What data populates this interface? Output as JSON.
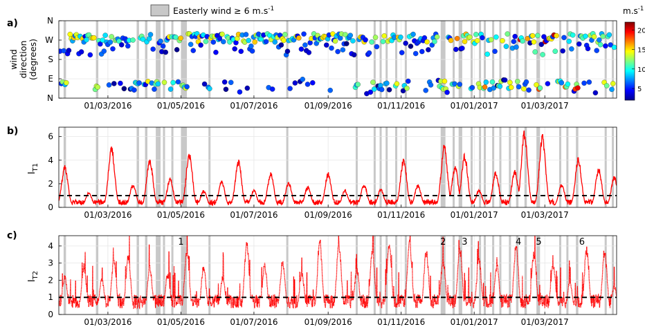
{
  "legend": {
    "label": "Easterly wind ≥ 6 m.s",
    "sup": "-1"
  },
  "colorbar": {
    "unit": "m.s",
    "unit_sup": "-1",
    "ticks": [
      "20",
      "15",
      "10",
      "5"
    ]
  },
  "colors": {
    "shade": "#c8c8c8",
    "series": "#ff0000",
    "threshold": "#000000"
  },
  "chart_data": [
    {
      "id": "a",
      "panel_label": "a)",
      "type": "scatter",
      "ylabel_line1": "wind",
      "ylabel_line2": "direction",
      "ylabel_line3": "(degrees)",
      "yticks": [
        "N",
        "W",
        "S",
        "E",
        "N"
      ],
      "ylim": [
        0,
        360
      ],
      "xticks": [
        "01/03/2016",
        "01/05/2016",
        "01/07/2016",
        "01/09/2016",
        "01/11/2016",
        "01/01/2017",
        "01/03/2017"
      ],
      "x_range": [
        "2016-01-20",
        "2017-04-30"
      ],
      "color_range_ms": [
        2,
        22
      ]
    },
    {
      "id": "b",
      "panel_label": "b)",
      "type": "line",
      "ylabel": "I",
      "ylabel_sub": "T1",
      "yticks": [
        "0",
        "2",
        "4",
        "6"
      ],
      "ylim": [
        0,
        6.8
      ],
      "threshold": 1,
      "xticks": [
        "01/03/2016",
        "01/05/2016",
        "01/07/2016",
        "01/09/2016",
        "01/11/2016",
        "01/01/2017",
        "01/03/2017"
      ],
      "peaks": [
        [
          "2016-01-25",
          3.6
        ],
        [
          "2016-02-14",
          1.3
        ],
        [
          "2016-03-04",
          5.3
        ],
        [
          "2016-03-22",
          2.0
        ],
        [
          "2016-04-05",
          4.3
        ],
        [
          "2016-04-22",
          2.5
        ],
        [
          "2016-05-08",
          4.8
        ],
        [
          "2016-05-20",
          1.5
        ],
        [
          "2016-06-04",
          2.3
        ],
        [
          "2016-06-18",
          4.1
        ],
        [
          "2016-07-01",
          1.5
        ],
        [
          "2016-07-15",
          3.0
        ],
        [
          "2016-07-30",
          2.2
        ],
        [
          "2016-08-15",
          1.8
        ],
        [
          "2016-09-01",
          3.0
        ],
        [
          "2016-09-15",
          1.5
        ],
        [
          "2016-10-01",
          2.0
        ],
        [
          "2016-10-15",
          1.6
        ],
        [
          "2016-11-03",
          4.2
        ],
        [
          "2016-11-15",
          2.0
        ],
        [
          "2016-12-07",
          5.4
        ],
        [
          "2016-12-16",
          3.6
        ],
        [
          "2016-12-24",
          4.6
        ],
        [
          "2017-01-05",
          1.5
        ],
        [
          "2017-01-19",
          3.1
        ],
        [
          "2017-02-04",
          3.2
        ],
        [
          "2017-02-12",
          6.7
        ],
        [
          "2017-02-27",
          6.3
        ],
        [
          "2017-03-15",
          2.0
        ],
        [
          "2017-03-29",
          4.3
        ],
        [
          "2017-04-15",
          3.4
        ],
        [
          "2017-04-28",
          2.7
        ]
      ]
    },
    {
      "id": "c",
      "panel_label": "c)",
      "type": "line",
      "ylabel": "I",
      "ylabel_sub": "T2",
      "yticks": [
        "0",
        "1",
        "2",
        "3",
        "4"
      ],
      "ylim": [
        0,
        4.6
      ],
      "threshold": 1,
      "xticks": [
        "01/03/2016",
        "01/05/2016",
        "01/07/2016",
        "01/09/2016",
        "01/11/2016",
        "01/01/2017",
        "01/03/2017"
      ],
      "event_labels": [
        {
          "label": "1",
          "date": "2016-05-01"
        },
        {
          "label": "2",
          "date": "2016-12-06"
        },
        {
          "label": "3",
          "date": "2016-12-24"
        },
        {
          "label": "4",
          "date": "2017-02-07"
        },
        {
          "label": "5",
          "date": "2017-02-24"
        },
        {
          "label": "6",
          "date": "2017-04-01"
        }
      ],
      "peaks": [
        [
          "2016-01-25",
          2.4
        ],
        [
          "2016-02-10",
          3.0
        ],
        [
          "2016-02-25",
          2.2
        ],
        [
          "2016-03-06",
          3.3
        ],
        [
          "2016-03-18",
          3.6
        ],
        [
          "2016-04-05",
          2.9
        ],
        [
          "2016-04-20",
          2.5
        ],
        [
          "2016-05-06",
          4.0
        ],
        [
          "2016-05-20",
          3.0
        ],
        [
          "2016-06-05",
          2.3
        ],
        [
          "2016-06-25",
          4.4
        ],
        [
          "2016-07-10",
          3.1
        ],
        [
          "2016-07-25",
          3.3
        ],
        [
          "2016-08-10",
          2.6
        ],
        [
          "2016-08-25",
          4.4
        ],
        [
          "2016-09-10",
          4.3
        ],
        [
          "2016-09-25",
          2.8
        ],
        [
          "2016-10-08",
          3.9
        ],
        [
          "2016-10-22",
          4.4
        ],
        [
          "2016-11-08",
          4.6
        ],
        [
          "2016-11-22",
          3.9
        ],
        [
          "2016-12-06",
          3.3
        ],
        [
          "2016-12-20",
          4.0
        ],
        [
          "2017-01-05",
          3.4
        ],
        [
          "2017-01-20",
          3.0
        ],
        [
          "2017-02-05",
          4.2
        ],
        [
          "2017-02-20",
          3.8
        ],
        [
          "2017-03-08",
          3.1
        ],
        [
          "2017-03-22",
          2.0
        ],
        [
          "2017-04-05",
          4.0
        ],
        [
          "2017-04-20",
          3.9
        ],
        [
          "2017-04-28",
          1.8
        ]
      ]
    }
  ],
  "easterly_events": [
    [
      "2016-01-24",
      2
    ],
    [
      "2016-02-20",
      2
    ],
    [
      "2016-03-25",
      2
    ],
    [
      "2016-04-01",
      2
    ],
    [
      "2016-04-10",
      4
    ],
    [
      "2016-04-16",
      1
    ],
    [
      "2016-04-23",
      1
    ],
    [
      "2016-05-01",
      5
    ],
    [
      "2016-05-24",
      1
    ],
    [
      "2016-07-28",
      1
    ],
    [
      "2016-09-24",
      1
    ],
    [
      "2016-10-09",
      1
    ],
    [
      "2016-10-14",
      1
    ],
    [
      "2016-10-19",
      1
    ],
    [
      "2016-10-27",
      1
    ],
    [
      "2016-11-04",
      1
    ],
    [
      "2016-12-04",
      4
    ],
    [
      "2016-12-14",
      1
    ],
    [
      "2016-12-19",
      3
    ],
    [
      "2016-12-29",
      1
    ],
    [
      "2017-01-05",
      1
    ],
    [
      "2017-01-09",
      1
    ],
    [
      "2017-01-16",
      1
    ],
    [
      "2017-01-22",
      1
    ],
    [
      "2017-01-30",
      1
    ],
    [
      "2017-02-05",
      2
    ],
    [
      "2017-02-12",
      2
    ],
    [
      "2017-02-22",
      3
    ],
    [
      "2017-03-13",
      1
    ],
    [
      "2017-03-19",
      1
    ],
    [
      "2017-03-27",
      2
    ],
    [
      "2017-04-20",
      1
    ],
    [
      "2017-04-26",
      1
    ]
  ]
}
